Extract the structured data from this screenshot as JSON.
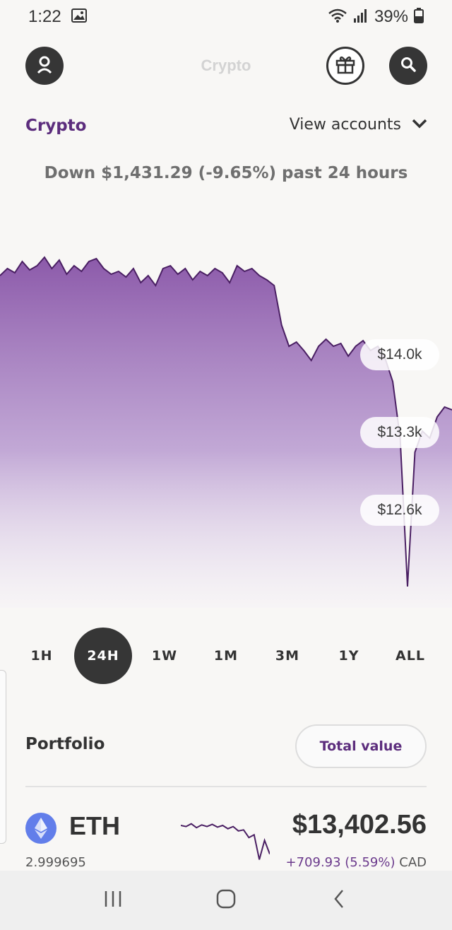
{
  "status": {
    "time": "1:22",
    "battery": "39%"
  },
  "header": {
    "title": "Crypto"
  },
  "section": {
    "label": "Crypto",
    "view_accounts": "View accounts"
  },
  "summary": {
    "change_text": "Down $1,431.29 (-9.65%) past 24 hours"
  },
  "chart_data": {
    "type": "area",
    "period": "24H",
    "price_labels": [
      "$14.0k",
      "$13.3k",
      "$12.6k"
    ],
    "values": [
      14.45,
      14.5,
      14.47,
      14.55,
      14.49,
      14.52,
      14.58,
      14.5,
      14.56,
      14.46,
      14.52,
      14.48,
      14.55,
      14.57,
      14.5,
      14.46,
      14.48,
      14.44,
      14.5,
      14.4,
      14.45,
      14.38,
      14.5,
      14.52,
      14.46,
      14.5,
      14.42,
      14.48,
      14.45,
      14.5,
      14.47,
      14.4,
      14.52,
      14.48,
      14.5,
      14.45,
      14.42,
      14.38,
      14.1,
      13.95,
      13.98,
      13.92,
      13.85,
      13.95,
      14.0,
      13.95,
      13.97,
      13.88,
      13.95,
      13.99,
      13.92,
      13.95,
      13.86,
      13.7,
      13.3,
      12.25,
      13.2,
      13.35,
      13.3,
      13.45,
      13.52,
      13.5
    ],
    "colors": {
      "fill_top": "#8c5aaa",
      "line": "#4a1f63"
    }
  },
  "ranges": [
    {
      "label": "1H",
      "active": false
    },
    {
      "label": "24H",
      "active": true
    },
    {
      "label": "1W",
      "active": false
    },
    {
      "label": "1M",
      "active": false
    },
    {
      "label": "3M",
      "active": false
    },
    {
      "label": "1Y",
      "active": false
    },
    {
      "label": "ALL",
      "active": false
    }
  ],
  "portfolio": {
    "title": "Portfolio",
    "total_button": "Total value",
    "assets": [
      {
        "symbol": "ETH",
        "amount": "2.999695",
        "value": "$13,402.56",
        "change": "+709.93 (5.59%)",
        "currency": "CAD",
        "icon": "ethereum-icon",
        "spark": [
          0.82,
          0.8,
          0.85,
          0.78,
          0.83,
          0.8,
          0.84,
          0.79,
          0.82,
          0.76,
          0.8,
          0.72,
          0.74,
          0.6,
          0.65,
          0.2,
          0.55,
          0.3
        ]
      }
    ]
  },
  "icons": {
    "profile": "profile-icon",
    "gift": "gift-icon",
    "search": "search-icon",
    "chevron": "chevron-down-icon",
    "recents": "recents-icon",
    "home": "home-icon",
    "back": "back-icon"
  }
}
